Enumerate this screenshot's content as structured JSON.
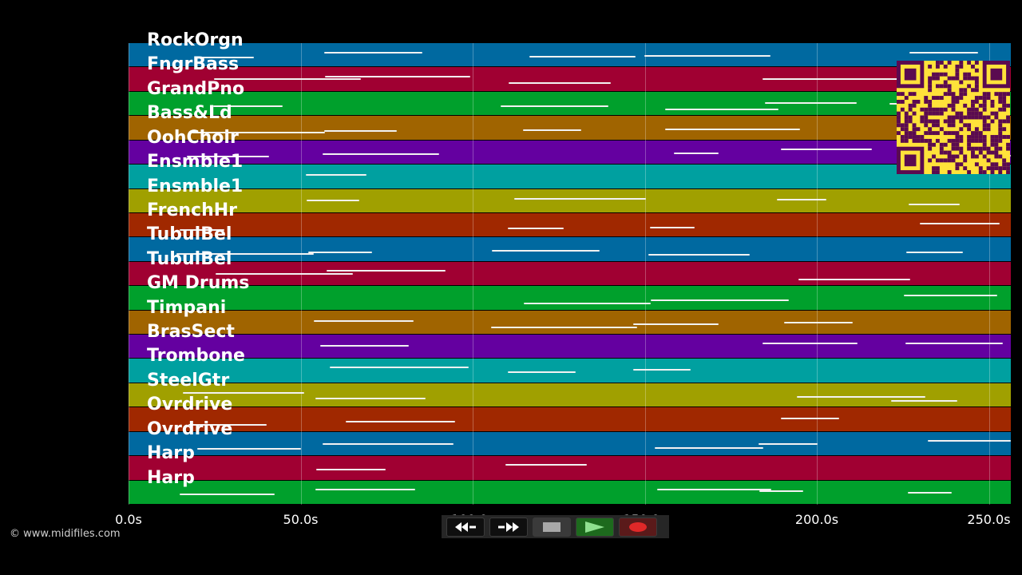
{
  "colors": {
    "background": "#000000",
    "track_palette": [
      "#0069a0",
      "#a00032",
      "#00a02c",
      "#a06400",
      "#6400a0",
      "#00a0a0",
      "#a0a000",
      "#a02800"
    ],
    "note": "#f2f2f2",
    "qr_background": "#ffe23a",
    "qr_modules": "#5a0a50"
  },
  "tracks": [
    {
      "label": "RockOrgn"
    },
    {
      "label": "FngrBass"
    },
    {
      "label": "GrandPno"
    },
    {
      "label": "Bass&Ld"
    },
    {
      "label": "OohChoir"
    },
    {
      "label": "Ensmble1"
    },
    {
      "label": "Ensmble1"
    },
    {
      "label": "FrenchHr"
    },
    {
      "label": "TubulBel"
    },
    {
      "label": "TubulBel"
    },
    {
      "label": "GM Drums"
    },
    {
      "label": "Timpani"
    },
    {
      "label": "BrasSect"
    },
    {
      "label": "Trombone"
    },
    {
      "label": "SteelGtr"
    },
    {
      "label": "Ovrdrive"
    },
    {
      "label": "Ovrdrive"
    },
    {
      "label": "Harp"
    },
    {
      "label": "Harp"
    }
  ],
  "time_axis": {
    "ticks": [
      "0.0s",
      "50.0s",
      "100.0s",
      "150.0s",
      "200.0s",
      "250.0s"
    ]
  },
  "copyright": "© www.midifiles.com",
  "transport": {
    "rewind": "rewind-icon",
    "fast_forward": "fast-forward-icon",
    "stop": "stop-icon",
    "play": "play-icon",
    "record": "record-icon"
  },
  "qr_code": "qr-code"
}
